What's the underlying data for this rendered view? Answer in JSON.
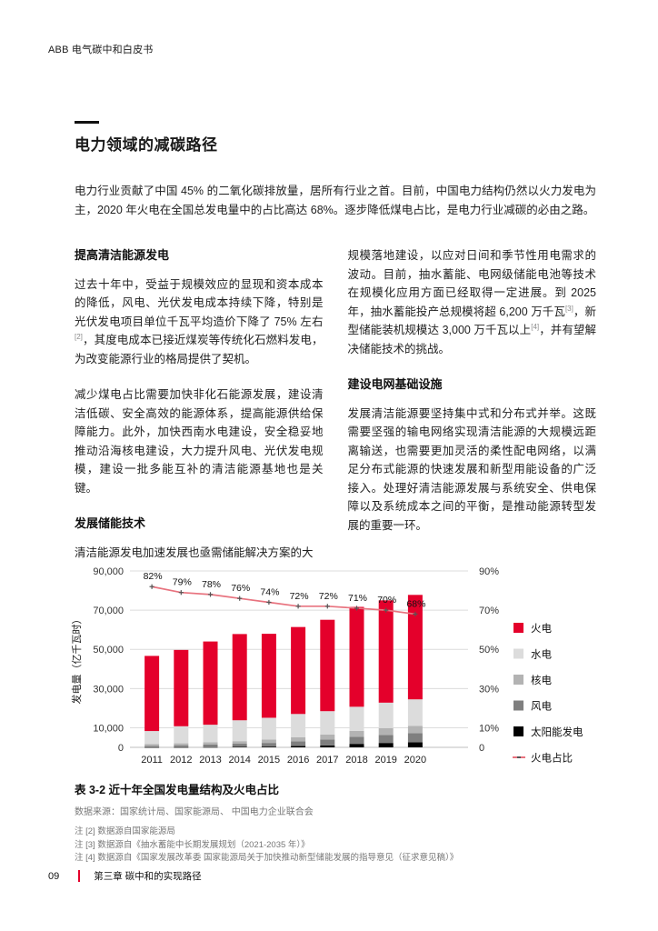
{
  "colors": {
    "accent_red": "#e4002b",
    "grid_gray": "#dcdcdc",
    "line_salmon": "#e8737f"
  },
  "page": {
    "header": "ABB 电气碳中和白皮书",
    "footer": {
      "page_number": "09",
      "chapter": "第三章 碳中和的实现路径"
    }
  },
  "article": {
    "title": "电力领域的减碳路径",
    "intro": "电力行业贡献了中国 45% 的二氧化碳排放量，居所有行业之首。目前，中国电力结构仍然以火力发电为主，2020 年火电在全国总发电量中的占比高达 68%。逐步降低煤电占比，是电力行业减碳的必由之路。"
  },
  "columns": {
    "left": {
      "heading1": "提高清洁能源发电",
      "p1a": "过去十年中，受益于规模效应的显现和资本成本的降低，风电、光伏发电成本持续下降，特别是光伏发电项目单位千瓦平均造价下降了 75% 左右",
      "p1sup": "[2]",
      "p1b": "，其度电成本已接近煤炭等传统化石燃料发电，为改变能源行业的格局提供了契机。",
      "p2": "减少煤电占比需要加快非化石能源发展，建设清洁低碳、安全高效的能源体系，提高能源供给保障能力。此外，加快西南水电建设，安全稳妥地推动沿海核电建设，大力提升风电、光伏发电规模，建设一批多能互补的清洁能源基地也是关键。",
      "heading2": "发展储能技术",
      "p3": "清洁能源发电加速发展也亟需储能解决方案的大"
    },
    "right": {
      "p1a": "规模落地建设，以应对日间和季节性用电需求的波动。目前，抽水蓄能、电网级储能电池等技术在规模化应用方面已经取得一定进展。到 2025 年，抽水蓄能投产总规模将超 6,200 万千瓦",
      "p1sup3": "[3]",
      "p1b": "，新型储能装机规模达 3,000 万千瓦以上",
      "p1sup4": "[4]",
      "p1c": "，并有望解决储能技术的挑战。",
      "heading": "建设电网基础设施",
      "p2": "发展清洁能源要坚持集中式和分布式并举。这既需要坚强的输电网络实现清洁能源的大规模远距离输送，也需要更加灵活的柔性配电网络，以满足分布式能源的快速发展和新型用能设备的广泛接入。处理好清洁能源发展与系统安全、供电保障以及系统成本之间的平衡，是推动能源转型发展的重要一环。"
    }
  },
  "chart_data": {
    "type": "bar",
    "subtype": "stacked-bar-with-line",
    "title": "近十年全国发电量结构及火电占比",
    "categories": [
      "2011",
      "2012",
      "2013",
      "2014",
      "2015",
      "2016",
      "2017",
      "2018",
      "2019",
      "2020"
    ],
    "series": [
      {
        "name": "太阳能发电",
        "color": "#000000",
        "values": [
          30,
          40,
          90,
          240,
          400,
          670,
          970,
          1780,
          2240,
          2610
        ]
      },
      {
        "name": "风电",
        "color": "#7f7f7f",
        "values": [
          740,
          1030,
          1410,
          1600,
          1860,
          2410,
          3060,
          3660,
          4060,
          4670
        ]
      },
      {
        "name": "核电",
        "color": "#b3b3b3",
        "values": [
          870,
          980,
          1120,
          1330,
          1710,
          2130,
          2480,
          2940,
          3480,
          3660
        ]
      },
      {
        "name": "水电",
        "color": "#dcdcdc",
        "values": [
          6680,
          8720,
          8920,
          10640,
          11130,
          11820,
          11950,
          12330,
          13020,
          13550
        ]
      },
      {
        "name": "火电",
        "color": "#e4002b",
        "values": [
          38340,
          38930,
          42470,
          44000,
          42840,
          44370,
          46630,
          50960,
          52200,
          53300
        ]
      }
    ],
    "line_series": {
      "name": "火电占比",
      "color": "#e8737f",
      "marker_color": "#555555",
      "unit": "%",
      "values": [
        82,
        79,
        78,
        76,
        74,
        72,
        72,
        71,
        70,
        68
      ]
    },
    "ylabel": "发电量（亿千瓦时）",
    "left_axis": {
      "ticks": [
        0,
        10000,
        30000,
        50000,
        70000,
        90000
      ],
      "max": 90000
    },
    "right_axis": {
      "tick_labels": [
        "0",
        "10%",
        "30%",
        "50%",
        "70%",
        "90%"
      ],
      "tick_values": [
        0,
        10,
        30,
        50,
        70,
        90
      ],
      "max": 90
    },
    "legend_position": "right",
    "grid": true
  },
  "table_caption": {
    "caption": "表 3-2 近十年全国发电量结构及火电占比",
    "source": "数据来源：国家统计局、国家能源局、 中国电力企业联合会"
  },
  "notes": [
    "注 [2] 数据源自国家能源局",
    "注 [3] 数据源自《抽水蓄能中长期发展规划（2021-2035 年）》",
    "注 [4] 数据源自《国家发展改革委 国家能源局关于加快推动新型储能发展的指导意见（征求意见稿）》"
  ]
}
